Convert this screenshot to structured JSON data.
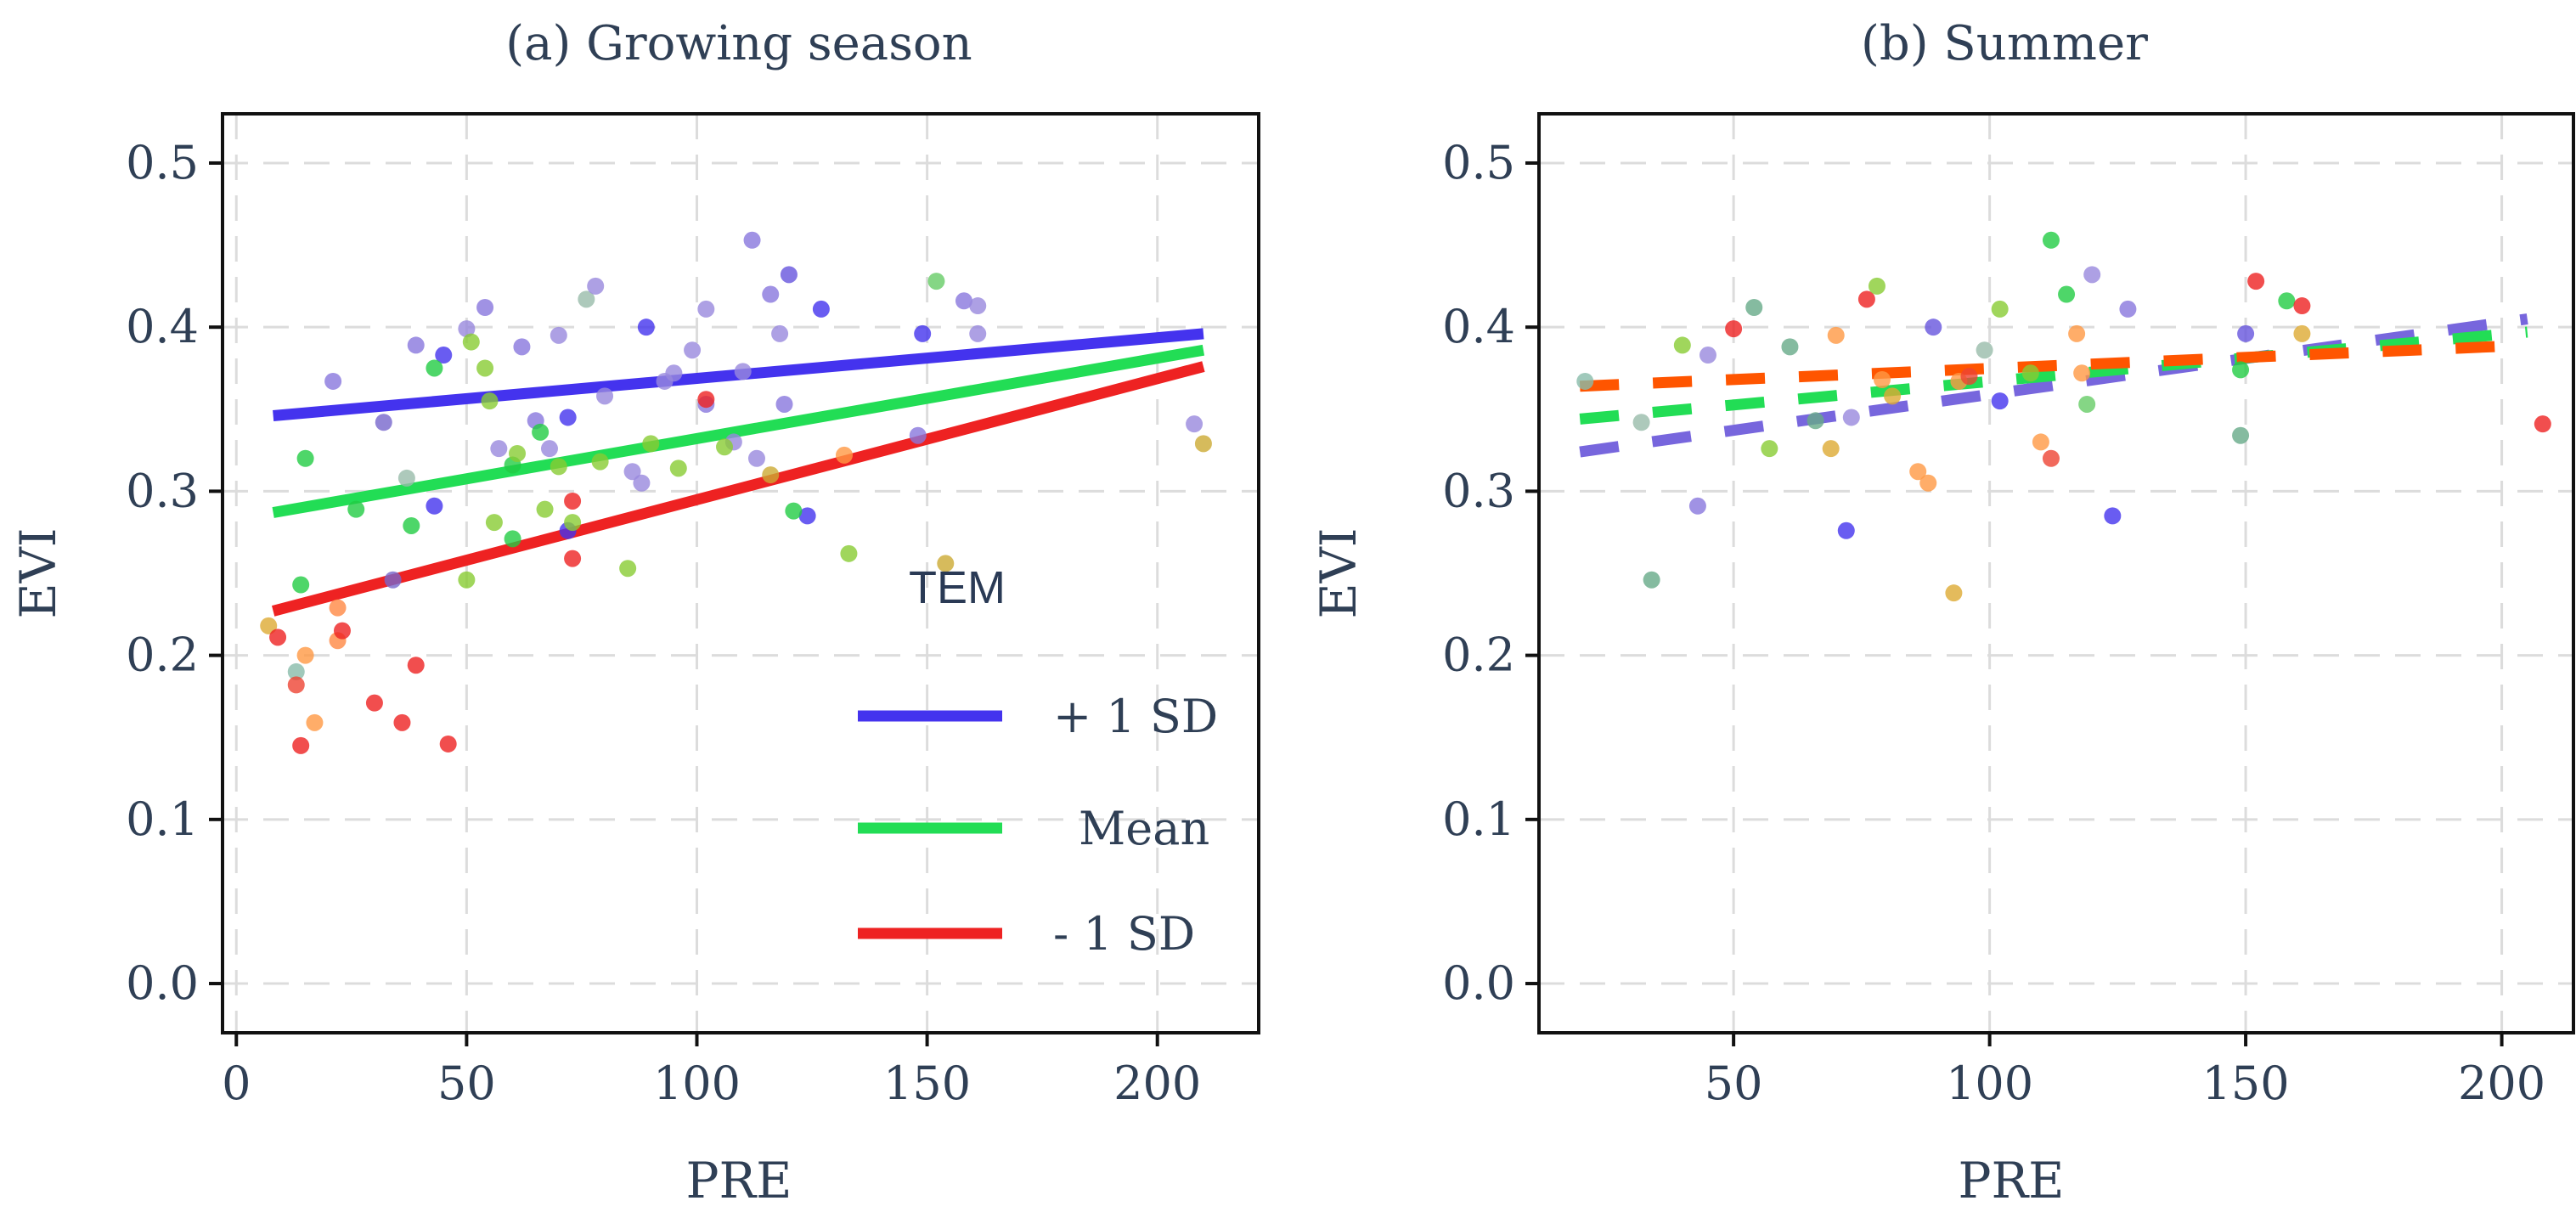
{
  "chart_data": [
    {
      "type": "scatter",
      "title": "(a) Growing season",
      "xlabel": "PRE",
      "ylabel": "EVI",
      "xlim": [
        -3,
        222
      ],
      "ylim": [
        -0.03,
        0.53
      ],
      "xticks": [
        0,
        50,
        100,
        150,
        200
      ],
      "yticks": [
        0.0,
        0.1,
        0.2,
        0.3,
        0.4,
        0.5
      ],
      "ytick_labels": [
        "0.0",
        "0.1",
        "0.2",
        "0.3",
        "0.4",
        "0.5"
      ],
      "grid": true,
      "legend": {
        "title": "TEM",
        "placement": "bottom-right",
        "entries": [
          {
            "label": "+ 1 SD",
            "color": "#4433ee"
          },
          {
            "label": "Mean",
            "color": "#22dd55"
          },
          {
            "label": "- 1 SD",
            "color": "#ee2222"
          }
        ]
      },
      "lines": [
        {
          "name": "+ 1 SD",
          "color": "#4433ee",
          "style": "solid",
          "x": [
            8,
            210
          ],
          "y": [
            0.346,
            0.396
          ]
        },
        {
          "name": "Mean",
          "color": "#22dd55",
          "style": "solid",
          "x": [
            8,
            210
          ],
          "y": [
            0.287,
            0.386
          ]
        },
        {
          "name": "- 1 SD",
          "color": "#ee2222",
          "style": "solid",
          "x": [
            8,
            210
          ],
          "y": [
            0.227,
            0.376
          ]
        }
      ],
      "points": [
        {
          "x": 21,
          "y": 0.367,
          "color": "#8877dd"
        },
        {
          "x": 32,
          "y": 0.342,
          "color": "#7766cc"
        },
        {
          "x": 34,
          "y": 0.246,
          "color": "#7766cc"
        },
        {
          "x": 39,
          "y": 0.389,
          "color": "#8877dd"
        },
        {
          "x": 43,
          "y": 0.291,
          "color": "#4433ee"
        },
        {
          "x": 45,
          "y": 0.383,
          "color": "#4433ee"
        },
        {
          "x": 43,
          "y": 0.375,
          "color": "#22cc44"
        },
        {
          "x": 50,
          "y": 0.399,
          "color": "#9988dd"
        },
        {
          "x": 54,
          "y": 0.412,
          "color": "#8877dd"
        },
        {
          "x": 57,
          "y": 0.326,
          "color": "#9988dd"
        },
        {
          "x": 62,
          "y": 0.388,
          "color": "#8877dd"
        },
        {
          "x": 65,
          "y": 0.343,
          "color": "#8877dd"
        },
        {
          "x": 68,
          "y": 0.326,
          "color": "#9988dd"
        },
        {
          "x": 70,
          "y": 0.395,
          "color": "#9988dd"
        },
        {
          "x": 72,
          "y": 0.345,
          "color": "#4433ee"
        },
        {
          "x": 72,
          "y": 0.276,
          "color": "#4433ee"
        },
        {
          "x": 76,
          "y": 0.417,
          "color": "#99bbaa"
        },
        {
          "x": 78,
          "y": 0.425,
          "color": "#9988dd"
        },
        {
          "x": 80,
          "y": 0.358,
          "color": "#9988dd"
        },
        {
          "x": 86,
          "y": 0.312,
          "color": "#9988dd"
        },
        {
          "x": 88,
          "y": 0.305,
          "color": "#9988dd"
        },
        {
          "x": 89,
          "y": 0.4,
          "color": "#4433ee"
        },
        {
          "x": 93,
          "y": 0.367,
          "color": "#9988dd"
        },
        {
          "x": 95,
          "y": 0.372,
          "color": "#9988dd"
        },
        {
          "x": 99,
          "y": 0.386,
          "color": "#9988dd"
        },
        {
          "x": 102,
          "y": 0.411,
          "color": "#9988dd"
        },
        {
          "x": 102,
          "y": 0.353,
          "color": "#8877dd"
        },
        {
          "x": 108,
          "y": 0.33,
          "color": "#9988dd"
        },
        {
          "x": 110,
          "y": 0.373,
          "color": "#9988dd"
        },
        {
          "x": 112,
          "y": 0.453,
          "color": "#8877dd"
        },
        {
          "x": 113,
          "y": 0.32,
          "color": "#9988dd"
        },
        {
          "x": 116,
          "y": 0.42,
          "color": "#8877dd"
        },
        {
          "x": 118,
          "y": 0.396,
          "color": "#9988dd"
        },
        {
          "x": 119,
          "y": 0.353,
          "color": "#8877dd"
        },
        {
          "x": 120,
          "y": 0.432,
          "color": "#6655dd"
        },
        {
          "x": 124,
          "y": 0.285,
          "color": "#4433ee"
        },
        {
          "x": 127,
          "y": 0.411,
          "color": "#4433ee"
        },
        {
          "x": 148,
          "y": 0.334,
          "color": "#8877dd"
        },
        {
          "x": 149,
          "y": 0.396,
          "color": "#4433ee"
        },
        {
          "x": 158,
          "y": 0.416,
          "color": "#8877dd"
        },
        {
          "x": 161,
          "y": 0.413,
          "color": "#9988dd"
        },
        {
          "x": 161,
          "y": 0.396,
          "color": "#9988dd"
        },
        {
          "x": 208,
          "y": 0.341,
          "color": "#9988dd"
        },
        {
          "x": 14,
          "y": 0.243,
          "color": "#22cc44"
        },
        {
          "x": 15,
          "y": 0.32,
          "color": "#22cc44"
        },
        {
          "x": 13,
          "y": 0.19,
          "color": "#88bbaa"
        },
        {
          "x": 26,
          "y": 0.289,
          "color": "#22cc44"
        },
        {
          "x": 37,
          "y": 0.308,
          "color": "#99bbaa"
        },
        {
          "x": 38,
          "y": 0.279,
          "color": "#22cc44"
        },
        {
          "x": 50,
          "y": 0.246,
          "color": "#88cc33"
        },
        {
          "x": 51,
          "y": 0.391,
          "color": "#88cc33"
        },
        {
          "x": 54,
          "y": 0.375,
          "color": "#88cc33"
        },
        {
          "x": 55,
          "y": 0.355,
          "color": "#88cc33"
        },
        {
          "x": 56,
          "y": 0.281,
          "color": "#88cc33"
        },
        {
          "x": 60,
          "y": 0.271,
          "color": "#22cc44"
        },
        {
          "x": 60,
          "y": 0.316,
          "color": "#22cc44"
        },
        {
          "x": 61,
          "y": 0.323,
          "color": "#88cc33"
        },
        {
          "x": 66,
          "y": 0.336,
          "color": "#22cc44"
        },
        {
          "x": 67,
          "y": 0.289,
          "color": "#88cc33"
        },
        {
          "x": 70,
          "y": 0.315,
          "color": "#88cc33"
        },
        {
          "x": 73,
          "y": 0.281,
          "color": "#88cc33"
        },
        {
          "x": 79,
          "y": 0.318,
          "color": "#88cc33"
        },
        {
          "x": 85,
          "y": 0.253,
          "color": "#88cc33"
        },
        {
          "x": 90,
          "y": 0.329,
          "color": "#88cc33"
        },
        {
          "x": 96,
          "y": 0.314,
          "color": "#88cc33"
        },
        {
          "x": 106,
          "y": 0.327,
          "color": "#88cc33"
        },
        {
          "x": 116,
          "y": 0.31,
          "color": "#ccaa33"
        },
        {
          "x": 121,
          "y": 0.288,
          "color": "#22cc44"
        },
        {
          "x": 133,
          "y": 0.262,
          "color": "#88cc33"
        },
        {
          "x": 152,
          "y": 0.428,
          "color": "#66cc66"
        },
        {
          "x": 154,
          "y": 0.256,
          "color": "#ccaa33"
        },
        {
          "x": 210,
          "y": 0.329,
          "color": "#ccaa33"
        },
        {
          "x": 7,
          "y": 0.218,
          "color": "#ddaa33"
        },
        {
          "x": 9,
          "y": 0.211,
          "color": "#ee2222"
        },
        {
          "x": 13,
          "y": 0.182,
          "color": "#ee4433"
        },
        {
          "x": 14,
          "y": 0.145,
          "color": "#ee2222"
        },
        {
          "x": 15,
          "y": 0.2,
          "color": "#ff9944"
        },
        {
          "x": 17,
          "y": 0.159,
          "color": "#ff9944"
        },
        {
          "x": 22,
          "y": 0.229,
          "color": "#ff8844"
        },
        {
          "x": 22,
          "y": 0.209,
          "color": "#ff8844"
        },
        {
          "x": 23,
          "y": 0.215,
          "color": "#ee2222"
        },
        {
          "x": 30,
          "y": 0.171,
          "color": "#ee2222"
        },
        {
          "x": 36,
          "y": 0.159,
          "color": "#ee2222"
        },
        {
          "x": 39,
          "y": 0.194,
          "color": "#ee2222"
        },
        {
          "x": 46,
          "y": 0.146,
          "color": "#ee2222"
        },
        {
          "x": 73,
          "y": 0.294,
          "color": "#ee2222"
        },
        {
          "x": 73,
          "y": 0.259,
          "color": "#ee2222"
        },
        {
          "x": 102,
          "y": 0.356,
          "color": "#ee2222"
        },
        {
          "x": 132,
          "y": 0.322,
          "color": "#ff9944"
        }
      ]
    },
    {
      "type": "scatter",
      "title": "(b) Summer",
      "xlabel": "PRE",
      "ylabel": "EVI",
      "xlim": [
        12,
        214
      ],
      "ylim": [
        -0.03,
        0.53
      ],
      "xticks": [
        50,
        100,
        150,
        200
      ],
      "yticks": [
        0.0,
        0.1,
        0.2,
        0.3,
        0.4,
        0.5
      ],
      "ytick_labels": [
        "0.0",
        "0.1",
        "0.2",
        "0.3",
        "0.4",
        "0.5"
      ],
      "grid": true,
      "lines": [
        {
          "name": "+ 1 SD",
          "color": "#7766dd",
          "style": "dashed",
          "x": [
            20,
            205
          ],
          "y": [
            0.324,
            0.405
          ]
        },
        {
          "name": "Mean",
          "color": "#22dd55",
          "style": "dashed",
          "x": [
            20,
            205
          ],
          "y": [
            0.344,
            0.397
          ]
        },
        {
          "name": "- 1 SD",
          "color": "#ff5500",
          "style": "dashed",
          "x": [
            20,
            205
          ],
          "y": [
            0.364,
            0.389
          ]
        }
      ],
      "points": [
        {
          "x": 21,
          "y": 0.367,
          "color": "#88bbaa"
        },
        {
          "x": 32,
          "y": 0.342,
          "color": "#99bbaa"
        },
        {
          "x": 34,
          "y": 0.246,
          "color": "#66aa88"
        },
        {
          "x": 40,
          "y": 0.389,
          "color": "#88cc33"
        },
        {
          "x": 43,
          "y": 0.291,
          "color": "#8877dd"
        },
        {
          "x": 45,
          "y": 0.383,
          "color": "#9988dd"
        },
        {
          "x": 50,
          "y": 0.399,
          "color": "#ee2222"
        },
        {
          "x": 54,
          "y": 0.412,
          "color": "#66aa88"
        },
        {
          "x": 57,
          "y": 0.326,
          "color": "#88cc33"
        },
        {
          "x": 61,
          "y": 0.388,
          "color": "#66aa88"
        },
        {
          "x": 66,
          "y": 0.343,
          "color": "#66aa88"
        },
        {
          "x": 69,
          "y": 0.326,
          "color": "#ddaa33"
        },
        {
          "x": 70,
          "y": 0.395,
          "color": "#ff9944"
        },
        {
          "x": 72,
          "y": 0.276,
          "color": "#4433ee"
        },
        {
          "x": 73,
          "y": 0.345,
          "color": "#9988dd"
        },
        {
          "x": 76,
          "y": 0.417,
          "color": "#ee2222"
        },
        {
          "x": 78,
          "y": 0.425,
          "color": "#88cc33"
        },
        {
          "x": 79,
          "y": 0.368,
          "color": "#ff9944"
        },
        {
          "x": 81,
          "y": 0.358,
          "color": "#ddaa33"
        },
        {
          "x": 86,
          "y": 0.312,
          "color": "#ff9944"
        },
        {
          "x": 88,
          "y": 0.305,
          "color": "#ff9944"
        },
        {
          "x": 89,
          "y": 0.4,
          "color": "#6655dd"
        },
        {
          "x": 93,
          "y": 0.238,
          "color": "#ddaa33"
        },
        {
          "x": 94,
          "y": 0.367,
          "color": "#ff9944"
        },
        {
          "x": 96,
          "y": 0.37,
          "color": "#ee4433"
        },
        {
          "x": 99,
          "y": 0.386,
          "color": "#99bbaa"
        },
        {
          "x": 102,
          "y": 0.411,
          "color": "#88cc33"
        },
        {
          "x": 102,
          "y": 0.355,
          "color": "#4433ee"
        },
        {
          "x": 108,
          "y": 0.372,
          "color": "#88cc33"
        },
        {
          "x": 110,
          "y": 0.33,
          "color": "#ff9944"
        },
        {
          "x": 112,
          "y": 0.32,
          "color": "#ee4433"
        },
        {
          "x": 112,
          "y": 0.453,
          "color": "#22cc44"
        },
        {
          "x": 115,
          "y": 0.42,
          "color": "#22cc44"
        },
        {
          "x": 117,
          "y": 0.396,
          "color": "#ff9944"
        },
        {
          "x": 118,
          "y": 0.372,
          "color": "#ff9944"
        },
        {
          "x": 119,
          "y": 0.353,
          "color": "#66cc66"
        },
        {
          "x": 120,
          "y": 0.432,
          "color": "#9988dd"
        },
        {
          "x": 124,
          "y": 0.285,
          "color": "#4433ee"
        },
        {
          "x": 127,
          "y": 0.411,
          "color": "#8877dd"
        },
        {
          "x": 149,
          "y": 0.374,
          "color": "#22cc44"
        },
        {
          "x": 149,
          "y": 0.334,
          "color": "#66aa88"
        },
        {
          "x": 150,
          "y": 0.396,
          "color": "#6655dd"
        },
        {
          "x": 152,
          "y": 0.428,
          "color": "#ee2222"
        },
        {
          "x": 158,
          "y": 0.416,
          "color": "#22cc44"
        },
        {
          "x": 161,
          "y": 0.413,
          "color": "#ee2222"
        },
        {
          "x": 161,
          "y": 0.396,
          "color": "#ddaa33"
        },
        {
          "x": 208,
          "y": 0.341,
          "color": "#ee2222"
        }
      ]
    }
  ]
}
